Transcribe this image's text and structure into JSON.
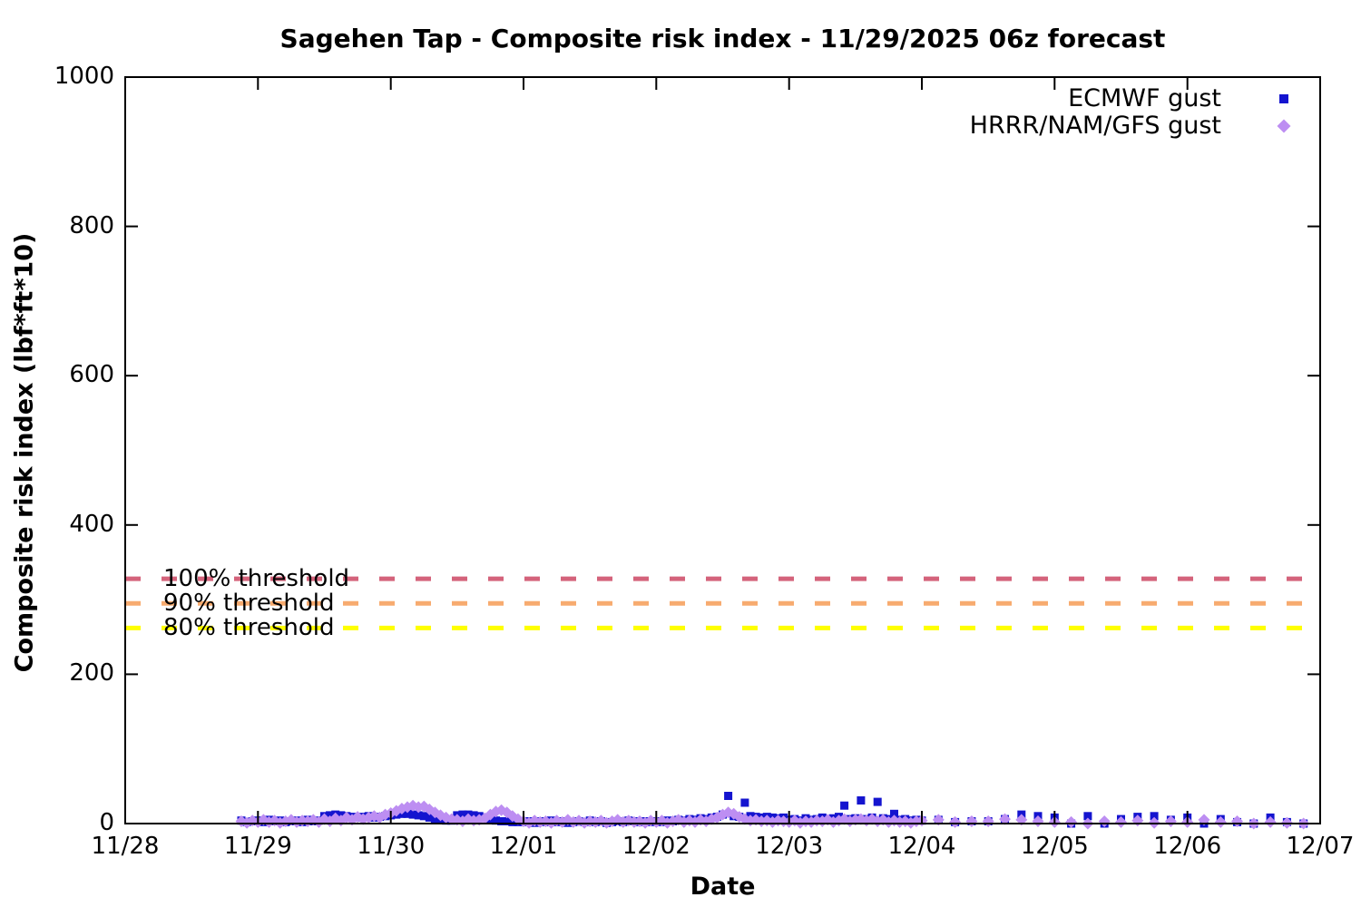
{
  "title": "Sagehen Tap - Composite risk index - 11/29/2025 06z forecast",
  "axes": {
    "x_label": "Date",
    "y_label": "Composite risk index (lbf*ft*10)",
    "x_ticks": [
      "11/28",
      "11/29",
      "11/30",
      "12/01",
      "12/02",
      "12/03",
      "12/04",
      "12/05",
      "12/06",
      "12/07"
    ],
    "y_ticks": [
      "0",
      "200",
      "400",
      "600",
      "800",
      "1000"
    ]
  },
  "legend": {
    "position": "top-right",
    "items": [
      {
        "label": "ECMWF gust",
        "marker": "square",
        "color": "#1414cf"
      },
      {
        "label": "HRRR/NAM/GFS gust",
        "marker": "diamond",
        "color": "#bd8ef2"
      }
    ]
  },
  "thresholds": [
    {
      "label": "100% threshold",
      "value": 328,
      "color": "#d4637b"
    },
    {
      "label": "90% threshold",
      "value": 295,
      "color": "#f7ab6f"
    },
    {
      "label": "80% threshold",
      "value": 262,
      "color": "#ffff00"
    }
  ],
  "chart_data": {
    "type": "scatter",
    "title": "Sagehen Tap - Composite risk index - 11/29/2025 06z forecast",
    "xlabel": "Date",
    "ylabel": "Composite risk index (lbf*ft*10)",
    "x_axis": {
      "start_label": "11/28",
      "end_label": "12/07",
      "span_days": 9,
      "units": "days after 11/28"
    },
    "ylim": [
      0,
      1000
    ],
    "grid": false,
    "legend_position": "top-right",
    "threshold_lines": [
      {
        "label": "100% threshold",
        "y": 328,
        "color": "#d4637b",
        "style": "dashed"
      },
      {
        "label": "90% threshold",
        "y": 295,
        "color": "#f7ab6f",
        "style": "dashed"
      },
      {
        "label": "80% threshold",
        "y": 262,
        "color": "#ffff00",
        "style": "dashed"
      }
    ],
    "series": [
      {
        "name": "ECMWF gust",
        "marker": "square",
        "color": "#1414cf",
        "segments": [
          {
            "t0_days": 0.875,
            "step_hours": 1,
            "values": [
              4,
              2,
              3,
              4,
              2,
              5,
              3,
              4,
              2,
              3,
              4,
              2,
              5,
              3,
              4,
              10,
              11,
              12,
              11,
              10,
              9,
              8,
              9,
              10,
              8,
              9,
              10,
              11,
              12,
              13,
              13,
              12,
              11,
              10,
              8,
              6,
              5,
              4,
              4,
              11,
              12,
              12,
              11,
              10,
              8,
              6,
              4,
              3,
              3,
              2,
              2,
              2,
              3,
              1,
              3,
              2,
              4,
              2,
              3,
              1,
              2,
              3,
              2,
              4,
              2,
              3,
              1,
              2,
              3,
              2,
              4,
              3,
              2,
              3,
              2,
              3,
              2,
              4,
              3,
              5,
              4,
              6,
              5,
              7,
              6,
              8,
              9,
              12,
              37,
              10,
              9,
              28,
              10,
              9,
              8,
              9,
              8,
              7,
              8,
              5,
              6,
              4,
              7,
              5,
              6,
              8,
              6,
              7,
              9,
              24,
              6,
              7,
              31,
              6,
              8,
              29,
              7,
              6,
              13,
              5,
              6,
              4,
              5,
              4
            ]
          },
          {
            "t0_days": 6.125,
            "step_hours": 3,
            "values": [
              5,
              2,
              3,
              3,
              6,
              12,
              10,
              8,
              0,
              10,
              0,
              6,
              9,
              10,
              5,
              8,
              0,
              6,
              2,
              0,
              8,
              2,
              0
            ]
          }
        ]
      },
      {
        "name": "HRRR/NAM/GFS gust",
        "marker": "diamond",
        "color": "#bd8ef2",
        "segments": [
          {
            "t0_days": 0.875,
            "step_hours": 1,
            "values": [
              3,
              1,
              4,
              2,
              5,
              2,
              4,
              1,
              3,
              5,
              2,
              4,
              3,
              5,
              2,
              6,
              3,
              7,
              4,
              8,
              5,
              9,
              6,
              8,
              10,
              8,
              12,
              14,
              17,
              20,
              22,
              24,
              22,
              23,
              19,
              15,
              11,
              8,
              6,
              5,
              3,
              6,
              4,
              5,
              7,
              12,
              16,
              18,
              15,
              10,
              6,
              3,
              1,
              4,
              2,
              3,
              1,
              4,
              2,
              5,
              2,
              4,
              1,
              3,
              2,
              4,
              1,
              3,
              5,
              2,
              4,
              2,
              3,
              1,
              4,
              2,
              4,
              1,
              3,
              5,
              2,
              4,
              2,
              5,
              3,
              6,
              8,
              12,
              15,
              13,
              9,
              6,
              4,
              5,
              3,
              4,
              2,
              4,
              3,
              2,
              4,
              1,
              3,
              2,
              4,
              3,
              5,
              2,
              4,
              6,
              3,
              5,
              6,
              4,
              6,
              3,
              5,
              2,
              4,
              2,
              3,
              1,
              3,
              4
            ]
          },
          {
            "t0_days": 6.125,
            "step_hours": 3,
            "values": [
              5,
              2,
              3,
              3,
              6,
              5,
              3,
              2,
              2,
              0,
              3,
              2,
              4,
              1,
              3,
              2,
              5,
              2,
              3,
              0,
              2,
              1,
              0
            ]
          }
        ]
      }
    ]
  }
}
